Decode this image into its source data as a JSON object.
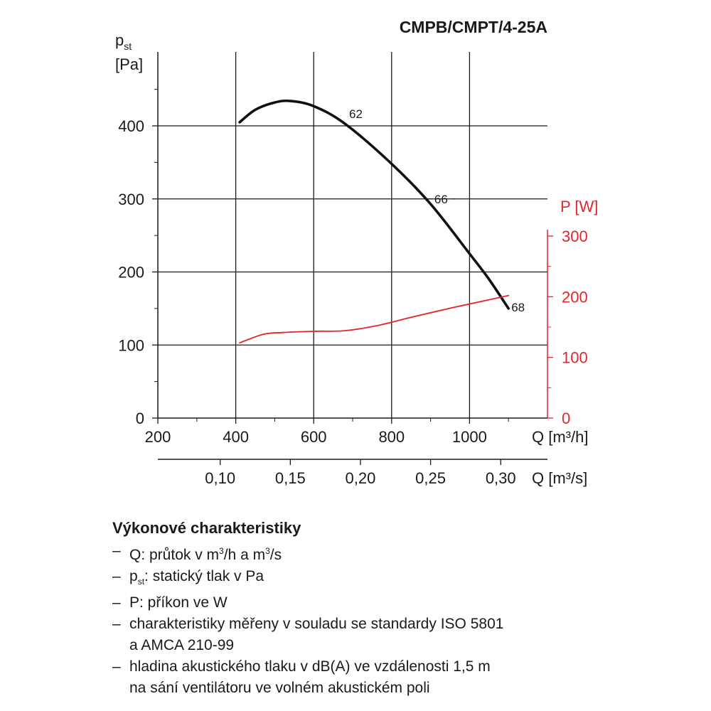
{
  "chart_data": {
    "type": "line",
    "title": "CMPB/CMPT/4-25A",
    "x_axis": {
      "label": "Q [m³/h]",
      "ticks": [
        200,
        400,
        600,
        800,
        1000
      ],
      "range": [
        200,
        1200
      ]
    },
    "x2_axis": {
      "label": "Q [m³/s]",
      "ticks": [
        "0,10",
        "0,15",
        "0,20",
        "0,25",
        "0,30"
      ],
      "tick_values_m3h": [
        360,
        540,
        720,
        900,
        1080
      ]
    },
    "y_axis_left": {
      "label_line1": "p",
      "label_sub": "st",
      "label_line2": "[Pa]",
      "ticks": [
        0,
        100,
        200,
        300,
        400
      ],
      "range": [
        0,
        500
      ]
    },
    "y_axis_right": {
      "label": "P [W]",
      "ticks": [
        0,
        100,
        200,
        300
      ],
      "range": [
        0,
        300
      ],
      "color": "#e3262b"
    },
    "grid": true,
    "series": [
      {
        "axis": "left",
        "color": "#111111",
        "x": [
          410,
          450,
          500,
          540,
          600,
          680,
          800,
          900,
          1000,
          1050,
          1100
        ],
        "y": [
          405,
          422,
          432,
          434,
          427,
          403,
          348,
          293,
          225,
          190,
          150
        ]
      },
      {
        "axis": "right",
        "color": "#e3262b",
        "x": [
          410,
          470,
          520,
          600,
          680,
          760,
          850,
          950,
          1050,
          1100
        ],
        "y": [
          124,
          138,
          141,
          143,
          144,
          152,
          166,
          181,
          195,
          202
        ]
      }
    ],
    "annotations": [
      {
        "text": "62",
        "x": 680,
        "y": 403
      },
      {
        "text": "66",
        "x": 895,
        "y": 300
      },
      {
        "text": "68",
        "x": 1100,
        "y": 150
      }
    ]
  },
  "legend": {
    "title": "Výkonové charakteristiky",
    "dash": "–",
    "items": [
      {
        "pre": "Q: průtok v m",
        "sup1": "3",
        "mid": "/h a m",
        "sup2": "3",
        "post": "/s"
      },
      {
        "pre": "p",
        "sub": "st",
        "post": ": statický tlak v Pa"
      },
      {
        "text": "P: příkon ve W"
      },
      {
        "text": "charakteristiky měřeny v souladu se standardy ISO 5801\na AMCA 210-99"
      },
      {
        "text": "hladina akustického tlaku v dB(A) ve vzdálenosti 1,5 m\nna sání ventilátoru ve volném akustickém poli"
      }
    ]
  }
}
